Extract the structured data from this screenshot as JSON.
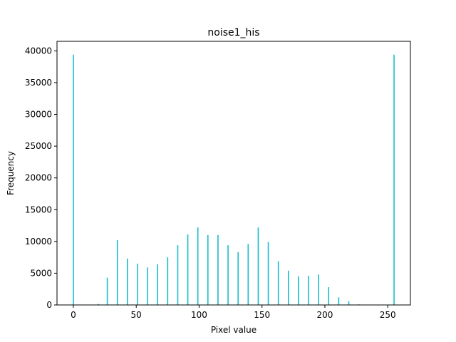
{
  "chart_data": {
    "type": "bar",
    "title": "noise1_his",
    "xlabel": "Pixel value",
    "ylabel": "Frequency",
    "xlim": [
      -13,
      268
    ],
    "ylim": [
      0,
      41500
    ],
    "xticks": [
      0,
      50,
      100,
      150,
      200,
      250
    ],
    "yticks": [
      0,
      5000,
      10000,
      15000,
      20000,
      25000,
      30000,
      35000,
      40000
    ],
    "bar_color": "#17becf",
    "grid": false,
    "series": [
      {
        "x": [
          0,
          20,
          27,
          35,
          43,
          51,
          59,
          67,
          75,
          83,
          91,
          99,
          107,
          115,
          123,
          131,
          139,
          147,
          155,
          163,
          171,
          179,
          187,
          195,
          203,
          211,
          219,
          227,
          255
        ],
        "values": [
          39400,
          150,
          4300,
          10200,
          7300,
          6500,
          5900,
          6400,
          7500,
          9400,
          11100,
          12200,
          11000,
          11000,
          9400,
          8300,
          9600,
          12200,
          9900,
          6900,
          5400,
          4500,
          4600,
          4800,
          2800,
          1200,
          600,
          100,
          39400
        ]
      }
    ]
  }
}
